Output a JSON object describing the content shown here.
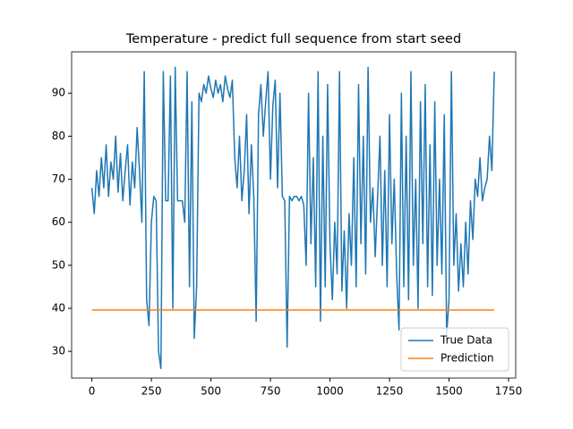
{
  "chart_data": {
    "type": "line",
    "title": "Temperature - predict full sequence from start seed",
    "xlim": [
      -85,
      1780
    ],
    "ylim": [
      23.8,
      99.6
    ],
    "xticks": [
      0,
      250,
      500,
      750,
      1000,
      1250,
      1500,
      1750
    ],
    "yticks": [
      30,
      40,
      50,
      60,
      70,
      80,
      90
    ],
    "legend": "lower right",
    "series": [
      {
        "name": "True Data",
        "color": "#1f77b4",
        "x": [
          0,
          10,
          20,
          30,
          40,
          50,
          60,
          70,
          80,
          90,
          100,
          110,
          120,
          130,
          140,
          150,
          160,
          170,
          180,
          190,
          200,
          210,
          220,
          230,
          240,
          250,
          260,
          270,
          280,
          290,
          300,
          310,
          320,
          330,
          340,
          350,
          360,
          370,
          380,
          390,
          400,
          410,
          420,
          430,
          440,
          450,
          460,
          470,
          480,
          490,
          500,
          510,
          520,
          530,
          540,
          550,
          560,
          570,
          580,
          590,
          600,
          610,
          620,
          630,
          640,
          650,
          660,
          670,
          680,
          690,
          700,
          710,
          720,
          730,
          740,
          750,
          760,
          770,
          780,
          790,
          800,
          810,
          820,
          830,
          840,
          850,
          860,
          870,
          880,
          890,
          900,
          910,
          920,
          930,
          940,
          950,
          960,
          970,
          980,
          990,
          1000,
          1010,
          1020,
          1030,
          1040,
          1050,
          1060,
          1070,
          1080,
          1090,
          1100,
          1110,
          1120,
          1130,
          1140,
          1150,
          1160,
          1170,
          1180,
          1190,
          1200,
          1210,
          1220,
          1230,
          1240,
          1250,
          1260,
          1270,
          1280,
          1290,
          1300,
          1310,
          1320,
          1330,
          1340,
          1350,
          1360,
          1370,
          1380,
          1390,
          1400,
          1410,
          1420,
          1430,
          1440,
          1450,
          1460,
          1470,
          1480,
          1490,
          1500,
          1510,
          1520,
          1530,
          1540,
          1550,
          1560,
          1570,
          1580,
          1590,
          1600,
          1610,
          1620,
          1630,
          1640,
          1650,
          1660,
          1670,
          1680,
          1690
        ],
        "values": [
          68,
          62,
          72,
          66,
          75,
          68,
          78,
          66,
          74,
          70,
          80,
          67,
          76,
          65,
          72,
          78,
          64,
          74,
          68,
          82,
          72,
          60,
          95,
          42,
          36,
          60,
          66,
          65,
          30,
          26,
          95,
          65,
          65,
          94,
          40,
          96,
          65,
          65,
          65,
          60,
          95,
          45,
          88,
          33,
          45,
          90,
          88,
          92,
          90,
          94,
          91,
          89,
          93,
          90,
          92,
          88,
          94,
          91,
          89,
          93,
          75,
          68,
          80,
          65,
          72,
          85,
          62,
          78,
          66,
          37,
          85,
          92,
          80,
          88,
          95,
          70,
          87,
          93,
          68,
          90,
          66,
          65,
          31,
          66,
          65,
          66,
          66,
          65,
          66,
          64,
          50,
          90,
          55,
          75,
          45,
          95,
          37,
          80,
          45,
          92,
          55,
          42,
          60,
          48,
          95,
          44,
          58,
          40,
          62,
          50,
          75,
          45,
          92,
          55,
          80,
          48,
          96,
          60,
          68,
          52,
          66,
          80,
          50,
          72,
          45,
          85,
          55,
          70,
          48,
          35,
          90,
          45,
          80,
          42,
          95,
          50,
          70,
          40,
          88,
          55,
          92,
          45,
          78,
          43,
          88,
          50,
          70,
          48,
          85,
          34,
          42,
          95,
          50,
          62,
          44,
          55,
          45,
          60,
          48,
          65,
          56,
          70,
          66,
          75,
          65,
          68,
          70,
          80,
          72,
          95
        ]
      },
      {
        "name": "Prediction",
        "color": "#ff7f0e",
        "x": [
          0,
          1690
        ],
        "values": [
          39.6,
          39.6
        ]
      }
    ]
  }
}
